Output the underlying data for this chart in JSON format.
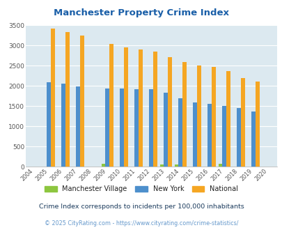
{
  "title": "Manchester Property Crime Index",
  "years": [
    2004,
    2005,
    2006,
    2007,
    2008,
    2009,
    2010,
    2011,
    2012,
    2013,
    2014,
    2015,
    2016,
    2017,
    2018,
    2019,
    2020
  ],
  "manchester": [
    0,
    0,
    0,
    0,
    0,
    75,
    0,
    0,
    0,
    60,
    50,
    0,
    0,
    65,
    0,
    0,
    0
  ],
  "new_york": [
    0,
    2090,
    2050,
    1990,
    0,
    1940,
    1940,
    1920,
    1920,
    1830,
    1700,
    1590,
    1550,
    1500,
    1450,
    1360,
    0
  ],
  "national": [
    0,
    3420,
    3330,
    3250,
    0,
    3040,
    2950,
    2900,
    2850,
    2720,
    2590,
    2500,
    2470,
    2370,
    2200,
    2110,
    0
  ],
  "manchester_color": "#8dc63f",
  "new_york_color": "#4d8fcc",
  "national_color": "#f5a623",
  "bg_color": "#dce9f0",
  "ylim": [
    0,
    3500
  ],
  "yticks": [
    0,
    500,
    1000,
    1500,
    2000,
    2500,
    3000,
    3500
  ],
  "title_color": "#1a5fa8",
  "legend_label_color": "#222222",
  "subtitle": "Crime Index corresponds to incidents per 100,000 inhabitants",
  "footer": "© 2025 CityRating.com - https://www.cityrating.com/crime-statistics/",
  "subtitle_color": "#1a3a5c",
  "footer_color": "#6699cc"
}
